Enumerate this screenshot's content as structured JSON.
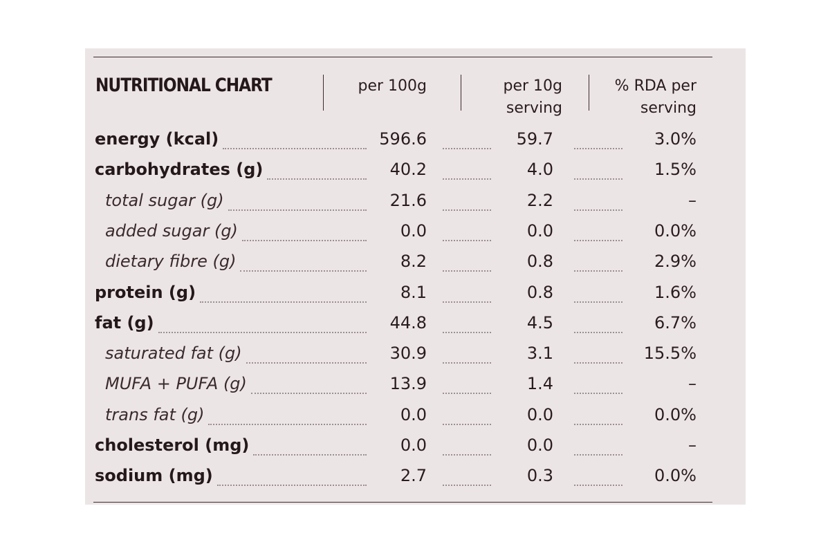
{
  "table": {
    "title": "NUTRITIONAL CHART",
    "headers": [
      {
        "line1": "per 100g",
        "line2": ""
      },
      {
        "line1": "per 10g",
        "line2": "serving"
      },
      {
        "line1": "% RDA per",
        "line2": "serving"
      }
    ],
    "rows": [
      {
        "label": "energy (kcal)",
        "per100g": "596.6",
        "per10g": "59.7",
        "rda": "3.0%",
        "sub": false
      },
      {
        "label": "carbohydrates (g)",
        "per100g": "40.2",
        "per10g": "4.0",
        "rda": "1.5%",
        "sub": false
      },
      {
        "label": "total sugar (g)",
        "per100g": "21.6",
        "per10g": "2.2",
        "rda": "–",
        "sub": true
      },
      {
        "label": "added sugar (g)",
        "per100g": "0.0",
        "per10g": "0.0",
        "rda": "0.0%",
        "sub": true
      },
      {
        "label": "dietary fibre (g)",
        "per100g": "8.2",
        "per10g": "0.8",
        "rda": "2.9%",
        "sub": true
      },
      {
        "label": "protein (g)",
        "per100g": "8.1",
        "per10g": "0.8",
        "rda": "1.6%",
        "sub": false
      },
      {
        "label": "fat (g)",
        "per100g": "44.8",
        "per10g": "4.5",
        "rda": "6.7%",
        "sub": false
      },
      {
        "label": "saturated fat (g)",
        "per100g": "30.9",
        "per10g": "3.1",
        "rda": "15.5%",
        "sub": true
      },
      {
        "label": "MUFA + PUFA (g)",
        "per100g": "13.9",
        "per10g": "1.4",
        "rda": "–",
        "sub": true
      },
      {
        "label": "trans fat (g)",
        "per100g": "0.0",
        "per10g": "0.0",
        "rda": "0.0%",
        "sub": true
      },
      {
        "label": "cholesterol (mg)",
        "per100g": "0.0",
        "per10g": "0.0",
        "rda": "–",
        "sub": false
      },
      {
        "label": "sodium (mg)",
        "per100g": "2.7",
        "per10g": "0.3",
        "rda": "0.0%",
        "sub": false
      }
    ]
  },
  "colors": {
    "panel_background": "#ece5e6",
    "text": "#24181a",
    "rule": "#3a2a2c"
  }
}
